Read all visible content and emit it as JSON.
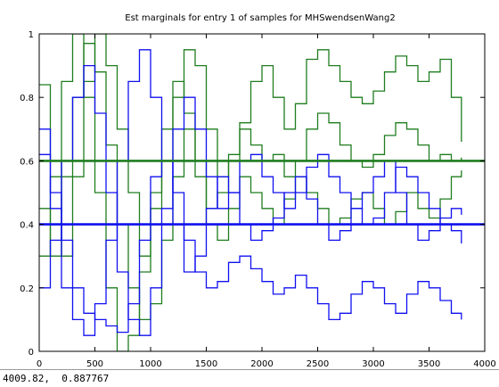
{
  "chart_data": {
    "type": "line",
    "title": "Est marginals for entry 1 of samples for MHSwendsenWang2",
    "xlabel": "",
    "ylabel": "",
    "xlim": [
      0,
      4000
    ],
    "ylim": [
      0,
      1
    ],
    "x_ticks": [
      0,
      500,
      1000,
      1500,
      2000,
      2500,
      3000,
      3500,
      4000
    ],
    "y_ticks": [
      0,
      0.2,
      0.4,
      0.6,
      0.8,
      1
    ],
    "x_tick_labels": [
      "0",
      "500",
      "1000",
      "1500",
      "2000",
      "2500",
      "3000",
      "3500",
      "4000"
    ],
    "y_tick_labels": [
      "0",
      "0.2",
      "0.4",
      "0.6",
      "0.8",
      "1"
    ],
    "grid": false,
    "legend": false,
    "colors": {
      "green": "#1f7d1f",
      "blue": "#1010f0",
      "axes": "#000000"
    },
    "reference_lines": [
      {
        "color": "green",
        "y": 0.6
      },
      {
        "color": "blue",
        "y": 0.4
      }
    ],
    "series": [
      {
        "color": "green",
        "x": [
          0,
          100,
          200,
          300,
          400,
          500,
          600,
          700,
          800,
          900,
          1000,
          1100,
          1200,
          1300,
          1400,
          1500,
          1600,
          1700,
          1800,
          1900,
          2000,
          2100,
          2200,
          2300,
          2400,
          2500,
          2600,
          2700,
          2800,
          2900,
          3000,
          3100,
          3200,
          3300,
          3400,
          3500,
          3600,
          3700,
          3790
        ],
        "y": [
          0.84,
          0.6,
          0.3,
          0.55,
          0.85,
          1.0,
          0.9,
          0.7,
          0.5,
          0.3,
          0.45,
          0.6,
          0.8,
          0.95,
          0.9,
          0.7,
          0.55,
          0.6,
          0.72,
          0.85,
          0.9,
          0.8,
          0.7,
          0.78,
          0.92,
          0.95,
          0.9,
          0.85,
          0.8,
          0.78,
          0.82,
          0.88,
          0.93,
          0.9,
          0.85,
          0.88,
          0.92,
          0.8,
          0.66
        ]
      },
      {
        "color": "green",
        "x": [
          0,
          100,
          200,
          300,
          400,
          500,
          600,
          700,
          800,
          900,
          1000,
          1100,
          1200,
          1300,
          1400,
          1500,
          1600,
          1700,
          1800,
          1900,
          2000,
          2100,
          2200,
          2300,
          2400,
          2500,
          2600,
          2700,
          2800,
          2900,
          3000,
          3100,
          3200,
          3300,
          3400,
          3500,
          3600,
          3700,
          3790
        ],
        "y": [
          0.45,
          0.3,
          0.55,
          0.8,
          0.97,
          0.88,
          0.65,
          0.4,
          0.2,
          0.1,
          0.15,
          0.35,
          0.55,
          0.7,
          0.6,
          0.45,
          0.5,
          0.62,
          0.7,
          0.65,
          0.6,
          0.62,
          0.55,
          0.6,
          0.7,
          0.75,
          0.72,
          0.65,
          0.6,
          0.58,
          0.62,
          0.68,
          0.72,
          0.7,
          0.65,
          0.6,
          0.62,
          0.6,
          0.61
        ]
      },
      {
        "color": "green",
        "x": [
          0,
          100,
          200,
          300,
          400,
          500,
          600,
          700,
          800,
          900,
          1000,
          1100,
          1200,
          1300,
          1400,
          1500,
          1600,
          1700,
          1800,
          1900,
          2000,
          2100,
          2200,
          2300,
          2400,
          2500,
          2600,
          2700,
          2800,
          2900,
          3000,
          3100,
          3200,
          3300,
          3400,
          3500,
          3600,
          3700,
          3790
        ],
        "y": [
          0.3,
          0.55,
          0.85,
          1.0,
          0.8,
          0.5,
          0.2,
          0.0,
          0.05,
          0.25,
          0.5,
          0.7,
          0.85,
          0.75,
          0.55,
          0.4,
          0.35,
          0.45,
          0.55,
          0.5,
          0.45,
          0.4,
          0.48,
          0.55,
          0.5,
          0.45,
          0.4,
          0.42,
          0.48,
          0.5,
          0.45,
          0.4,
          0.44,
          0.5,
          0.45,
          0.42,
          0.48,
          0.55,
          0.57
        ]
      },
      {
        "color": "blue",
        "x": [
          0,
          100,
          200,
          300,
          400,
          500,
          600,
          700,
          800,
          900,
          1000,
          1100,
          1200,
          1300,
          1400,
          1500,
          1600,
          1700,
          1800,
          1900,
          2000,
          2100,
          2200,
          2300,
          2400,
          2500,
          2600,
          2700,
          2800,
          2900,
          3000,
          3100,
          3200,
          3300,
          3400,
          3500,
          3600,
          3700,
          3790
        ],
        "y": [
          0.7,
          0.45,
          0.2,
          0.1,
          0.05,
          0.15,
          0.35,
          0.6,
          0.85,
          0.95,
          0.8,
          0.6,
          0.4,
          0.25,
          0.3,
          0.45,
          0.55,
          0.5,
          0.4,
          0.35,
          0.38,
          0.42,
          0.5,
          0.55,
          0.48,
          0.4,
          0.35,
          0.38,
          0.45,
          0.5,
          0.55,
          0.6,
          0.5,
          0.4,
          0.35,
          0.38,
          0.42,
          0.45,
          0.43
        ]
      },
      {
        "color": "blue",
        "x": [
          0,
          100,
          200,
          300,
          400,
          500,
          600,
          700,
          800,
          900,
          1000,
          1100,
          1200,
          1300,
          1400,
          1500,
          1600,
          1700,
          1800,
          1900,
          2000,
          2100,
          2200,
          2300,
          2400,
          2500,
          2600,
          2700,
          2800,
          2900,
          3000,
          3100,
          3200,
          3300,
          3400,
          3500,
          3600,
          3700,
          3790
        ],
        "y": [
          0.2,
          0.35,
          0.6,
          0.8,
          0.9,
          0.75,
          0.5,
          0.25,
          0.1,
          0.05,
          0.2,
          0.45,
          0.7,
          0.8,
          0.7,
          0.55,
          0.45,
          0.5,
          0.6,
          0.62,
          0.55,
          0.5,
          0.45,
          0.5,
          0.58,
          0.62,
          0.55,
          0.5,
          0.45,
          0.4,
          0.42,
          0.5,
          0.58,
          0.55,
          0.5,
          0.45,
          0.4,
          0.38,
          0.34
        ]
      },
      {
        "color": "blue",
        "x": [
          0,
          100,
          200,
          300,
          400,
          500,
          600,
          700,
          800,
          900,
          1000,
          1100,
          1200,
          1300,
          1400,
          1500,
          1600,
          1700,
          1800,
          1900,
          2000,
          2100,
          2200,
          2300,
          2400,
          2500,
          2600,
          2700,
          2800,
          2900,
          3000,
          3100,
          3200,
          3300,
          3400,
          3500,
          3600,
          3700,
          3790
        ],
        "y": [
          0.62,
          0.5,
          0.35,
          0.2,
          0.12,
          0.1,
          0.08,
          0.06,
          0.15,
          0.35,
          0.55,
          0.6,
          0.5,
          0.35,
          0.25,
          0.2,
          0.22,
          0.28,
          0.3,
          0.26,
          0.22,
          0.18,
          0.2,
          0.24,
          0.2,
          0.15,
          0.1,
          0.12,
          0.18,
          0.22,
          0.2,
          0.15,
          0.12,
          0.18,
          0.22,
          0.2,
          0.16,
          0.12,
          0.1
        ]
      }
    ]
  },
  "status": {
    "coordinates": "4009.82,  0.887767"
  }
}
